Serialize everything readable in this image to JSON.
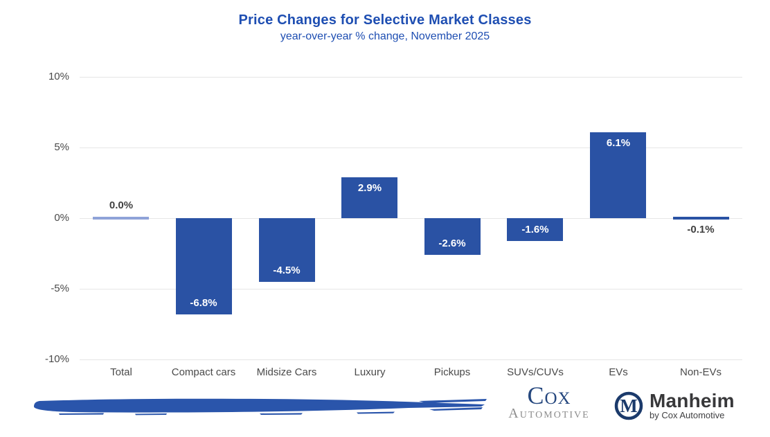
{
  "header": {
    "title": "Price Changes for Selective Market Classes",
    "subtitle": "year-over-year % change, November 2025"
  },
  "chart_data": {
    "type": "bar",
    "title": "Price Changes for Selective Market Classes",
    "subtitle": "year-over-year % change, November 2025",
    "categories": [
      "Total",
      "Compact cars",
      "Midsize Cars",
      "Luxury",
      "Pickups",
      "SUVs/CUVs",
      "EVs",
      "Non-EVs"
    ],
    "values": [
      0.0,
      -6.8,
      -4.5,
      2.9,
      -2.6,
      -1.6,
      6.1,
      -0.1
    ],
    "value_labels": [
      "0.0%",
      "-6.8%",
      "-4.5%",
      "2.9%",
      "-2.6%",
      "-1.6%",
      "6.1%",
      "-0.1%"
    ],
    "bar_colors": [
      "#8fa3d8",
      "#2a52a4",
      "#2a52a4",
      "#2a52a4",
      "#2a52a4",
      "#2a52a4",
      "#2a52a4",
      "#2a52a4"
    ],
    "xlabel": "",
    "ylabel": "",
    "y_ticks": [
      "10%",
      "5%",
      "0%",
      "-5%",
      "-10%"
    ],
    "y_tick_values": [
      10,
      5,
      0,
      -5,
      -10
    ],
    "ylim": [
      -10,
      10
    ],
    "grid": true,
    "legend": "none",
    "label_placement": "inside bars (white) for large bars; outside (dark gray) for near-zero bars"
  },
  "colors": {
    "title_text": "#1e4eb2",
    "bar_fill": "#2a52a4",
    "zero_bar_fill": "#8fa3d8",
    "gridline": "#e6e6e6",
    "axis_text": "#4a4a4a",
    "value_label_inside": "#ffffff",
    "value_label_outside": "#404040"
  },
  "footer": {
    "brush_stroke_icon": "blue-brush-stroke-graphic",
    "brush_color": "#2a55ab",
    "cox_automotive_logo": {
      "name": "Cox",
      "division": "Automotive",
      "name_color": "#25477e",
      "division_color": "#8c8c8c"
    },
    "manheim_logo": {
      "icon": "manheim-m-circle-icon",
      "icon_color": "#1b3a6b",
      "name": "Manheim",
      "tagline": "by Cox Automotive"
    }
  }
}
